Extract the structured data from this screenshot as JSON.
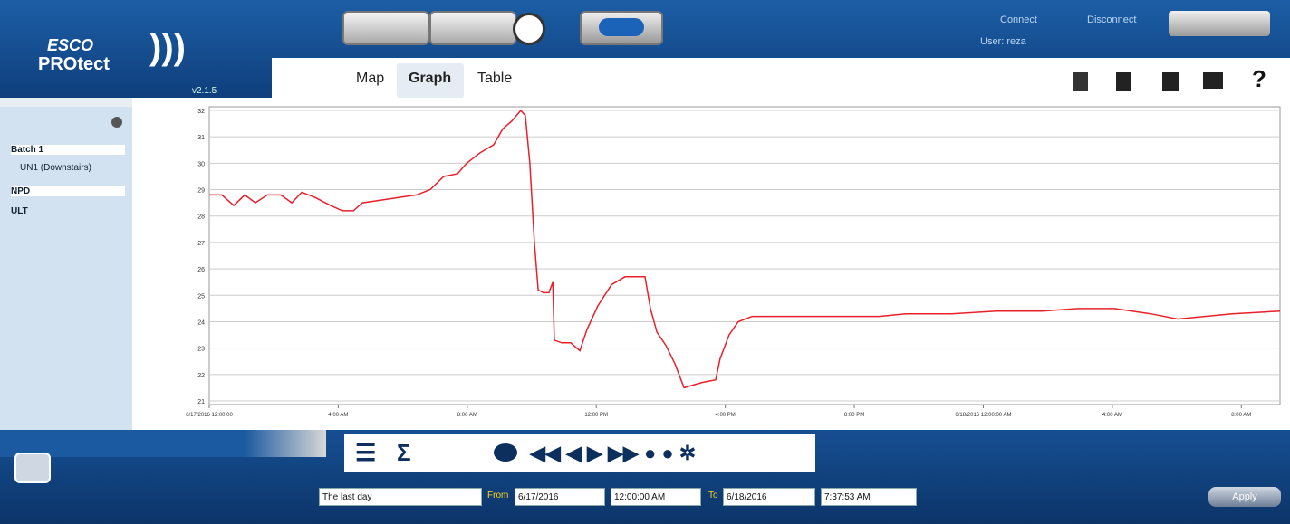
{
  "header": {
    "brand": "ESCO",
    "product": "PROtect",
    "version": "v2.1.5",
    "connect": "Connect",
    "disconnect": "Disconnect",
    "user": "User: reza",
    "help": "?"
  },
  "tabs": [
    "Map",
    "Graph",
    "Table"
  ],
  "tree": [
    "Batch 1",
    "UN1 (Downstairs)",
    "NPD",
    "ULT"
  ],
  "toolbar": {
    "sum": "Σ"
  },
  "chart": {
    "type": "line",
    "x": [
      0,
      0.39,
      0.76,
      1.1,
      1.43,
      1.8,
      2.22,
      2.56,
      2.87,
      3.29,
      3.76,
      4.13,
      4.47,
      4.75,
      5.31,
      5.87,
      6.43,
      6.85,
      7.27,
      7.7,
      7.98,
      8.4,
      8.82,
      9.1,
      9.38,
      9.66,
      9.8,
      9.94,
      10.08,
      10.2,
      10.37,
      10.53,
      10.65,
      10.7,
      10.93,
      11.21,
      11.49,
      11.71,
      12.05,
      12.47,
      12.89,
      13.31,
      13.51,
      13.68,
      13.88,
      14.16,
      14.44,
      14.72,
      15.0,
      15.28,
      15.7,
      15.84,
      16.12,
      16.4,
      16.83,
      17.95,
      19.35,
      20.76,
      21.6,
      23.01,
      24.41,
      25.81,
      26.94,
      28.06,
      29.19,
      30.03,
      30.87,
      31.71,
      33.2
    ],
    "series": [
      {
        "color": "#e8202a",
        "values": [
          28.8,
          28.8,
          28.4,
          28.8,
          28.5,
          28.8,
          28.8,
          28.5,
          28.9,
          28.7,
          28.4,
          28.2,
          28.2,
          28.5,
          28.6,
          28.7,
          28.8,
          29.0,
          29.5,
          29.6,
          30.0,
          30.4,
          30.7,
          31.3,
          31.6,
          32.0,
          31.8,
          30.0,
          27.0,
          25.2,
          25.1,
          25.1,
          25.5,
          23.3,
          23.2,
          23.2,
          22.9,
          23.7,
          24.6,
          25.4,
          25.7,
          25.7,
          25.7,
          24.5,
          23.6,
          23.1,
          22.4,
          21.5,
          21.6,
          21.7,
          21.8,
          22.6,
          23.5,
          24.0,
          24.2,
          24.2,
          24.2,
          24.2,
          24.3,
          24.3,
          24.4,
          24.4,
          24.5,
          24.5,
          24.3,
          24.1,
          24.2,
          24.3,
          24.4
        ]
      }
    ],
    "xlim": [
      0,
      33.2
    ],
    "ylim": [
      21,
      32
    ],
    "xticks": [
      {
        "value": 0,
        "label": "6/17/2016 12:00:00"
      },
      {
        "value": 4,
        "label": "4:00 AM"
      },
      {
        "value": 8,
        "label": "8:00 AM"
      },
      {
        "value": 12,
        "label": "12:00 PM"
      },
      {
        "value": 16,
        "label": "4:00 PM"
      },
      {
        "value": 20,
        "label": "8:00 PM"
      },
      {
        "value": 24,
        "label": "6/18/2016 12:00:00 AM"
      },
      {
        "value": 28,
        "label": "4:00 AM"
      },
      {
        "value": 32,
        "label": "8:00 AM"
      }
    ],
    "yticks": [
      21,
      22,
      23,
      24,
      25,
      26,
      27,
      28,
      29,
      30,
      31,
      32
    ],
    "grid": true
  },
  "footer": {
    "range": "The last day",
    "from_label": "From",
    "from_date": "6/17/2016",
    "from_time": "12:00:00 AM",
    "to_label": "To",
    "to_date": "6/18/2016",
    "to_time": "7:37:53 AM",
    "apply": "Apply"
  }
}
